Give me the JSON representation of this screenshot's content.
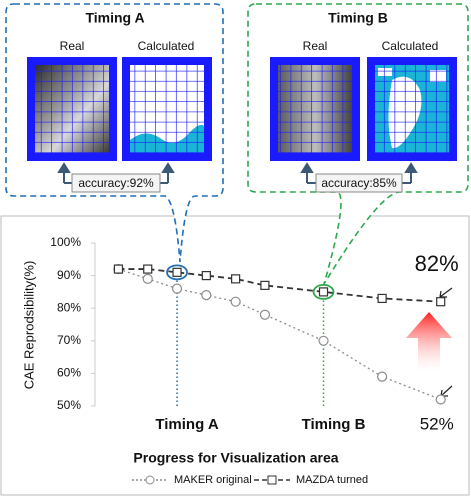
{
  "chart_data": {
    "type": "line",
    "x_label": "Progress for Visualization area",
    "y_label": "CAE Reprodsibility(%)",
    "x": [
      0,
      1,
      2,
      3,
      4,
      5,
      7,
      9,
      11
    ],
    "xlim": [
      -0.8,
      12
    ],
    "ylim": [
      50,
      100
    ],
    "yticks": [
      {
        "value": 50,
        "label": "50%"
      },
      {
        "value": 60,
        "label": "60%"
      },
      {
        "value": 70,
        "label": "70%"
      },
      {
        "value": 80,
        "label": "80%"
      },
      {
        "value": 90,
        "label": "90%"
      },
      {
        "value": 100,
        "label": "100%"
      }
    ],
    "series": [
      {
        "name": "MAKER original",
        "color": "#8c8c8c",
        "style": "dotted",
        "marker": "circle",
        "values": [
          92,
          89,
          86,
          84,
          82,
          78,
          70,
          59,
          52
        ],
        "value_labels": [
          null,
          null,
          null,
          null,
          null,
          null,
          null,
          null,
          "52%"
        ]
      },
      {
        "name": "MAZDA turned",
        "color": "#333333",
        "style": "dashed",
        "marker": "square",
        "values": [
          92,
          92,
          91,
          90,
          89,
          87,
          85,
          83,
          82
        ],
        "value_labels": [
          null,
          null,
          null,
          null,
          null,
          null,
          null,
          null,
          "82%"
        ]
      }
    ],
    "annotations": [
      {
        "label": "Timing A",
        "x": 2,
        "color": "#1f6fb5",
        "title": "Timing A",
        "real": "Real",
        "calculated": "Calculated",
        "accuracy": "accuracy:92%"
      },
      {
        "label": "Timing B",
        "x": 7,
        "color": "#2ea84f",
        "title": "Timing B",
        "real": "Real",
        "calculated": "Calculated",
        "accuracy": "accuracy:85%"
      }
    ]
  }
}
